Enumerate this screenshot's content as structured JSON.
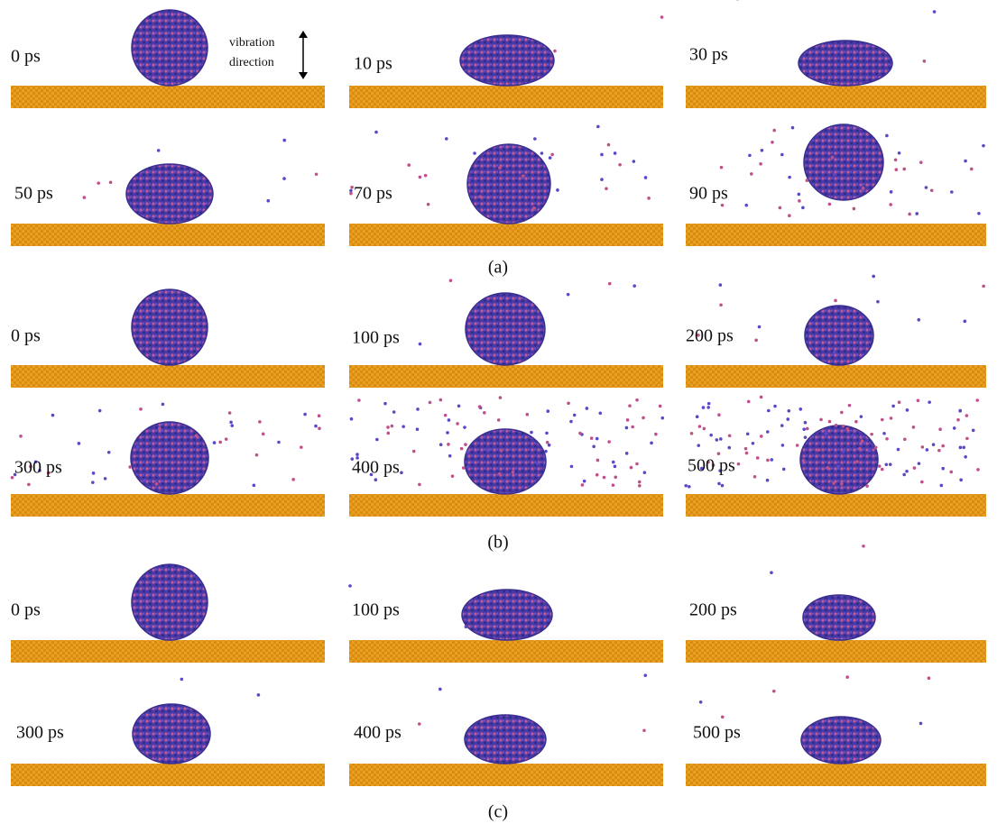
{
  "panels": [
    {
      "label": "(a)",
      "snapshots": [
        [
          "0 ps",
          "10 ps",
          "30 ps"
        ],
        [
          "50 ps",
          "70 ps",
          "90 ps"
        ]
      ]
    },
    {
      "label": "(b)",
      "snapshots": [
        [
          "0 ps",
          "100 ps",
          "200 ps"
        ],
        [
          "300 ps",
          "400 ps",
          "500 ps"
        ]
      ]
    },
    {
      "label": "(c)",
      "snapshots": [
        [
          "0 ps",
          "100 ps",
          "200 ps"
        ],
        [
          "300 ps",
          "400 ps",
          "500 ps"
        ]
      ]
    }
  ],
  "annotation": [
    "vibration",
    "direction"
  ]
}
